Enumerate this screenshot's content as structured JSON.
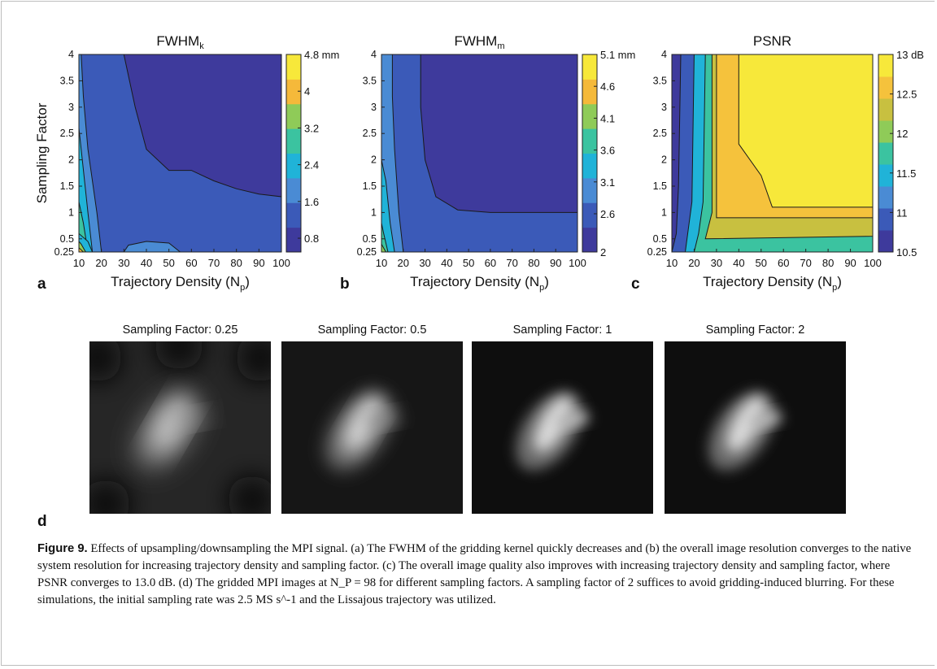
{
  "figure": {
    "panel_letters": [
      "a",
      "b",
      "c",
      "d"
    ],
    "caption": {
      "label": "Figure 9.",
      "text": "Effects of upsampling/downsampling the MPI signal. (a) The FWHM of the gridding kernel quickly decreases and (b) the overall image resolution converges to the native system resolution for increasing trajectory density and sampling factor. (c) The overall image quality also improves with increasing trajectory density and sampling factor, where PSNR converges to 13.0 dB. (d) The gridded MPI images at N_P = 98 for different sampling factors. A sampling factor of 2 suffices to avoid gridding-induced blurring. For these simulations, the initial sampling rate was 2.5 MS s^-1 and the Lissajous trajectory was utilized."
    },
    "images": [
      {
        "title": "Sampling Factor: 0.25"
      },
      {
        "title": "Sampling Factor: 0.5"
      },
      {
        "title": "Sampling Factor: 1"
      },
      {
        "title": "Sampling Factor: 2"
      }
    ]
  },
  "chart_data": [
    {
      "type": "heatmap",
      "title": "FWHM",
      "title_sub": "k",
      "xlabel": "Trajectory Density (N",
      "xlabel_sub": "p",
      "xlabel_end": ")",
      "ylabel": "Sampling Factor",
      "x_ticks": [
        "10",
        "20",
        "30",
        "40",
        "50",
        "60",
        "70",
        "80",
        "90",
        "100"
      ],
      "y_ticks": [
        "0.25",
        "0.5",
        "1",
        "1.5",
        "2",
        "2.5",
        "3",
        "3.5",
        "4"
      ],
      "x_range": [
        10,
        100
      ],
      "y_range": [
        0.25,
        4
      ],
      "colorbar_ticks": [
        "4.8 mm",
        "4",
        "3.2",
        "2.4",
        "1.6",
        "0.8"
      ],
      "colorbar_range": [
        0.5,
        4.8
      ],
      "colors": [
        "#3e3a9c",
        "#3b5ab8",
        "#4a8bd4",
        "#20b3d8",
        "#3bc3a0",
        "#8fcb58",
        "#f5b93a",
        "#f7e83a"
      ]
    },
    {
      "type": "heatmap",
      "title": "FWHM",
      "title_sub": "m",
      "xlabel": "Trajectory Density (N",
      "xlabel_sub": "p",
      "xlabel_end": ")",
      "x_ticks": [
        "10",
        "20",
        "30",
        "40",
        "50",
        "60",
        "70",
        "80",
        "90",
        "100"
      ],
      "y_ticks": [
        "0.25",
        "0.5",
        "1",
        "1.5",
        "2",
        "2.5",
        "3",
        "3.5",
        "4"
      ],
      "x_range": [
        10,
        100
      ],
      "y_range": [
        0.25,
        4
      ],
      "colorbar_ticks": [
        "5.1 mm",
        "4.6",
        "4.1",
        "3.6",
        "3.1",
        "2.6",
        "2"
      ],
      "colorbar_range": [
        2,
        5.1
      ],
      "colors": [
        "#3e3a9c",
        "#3b5ab8",
        "#4a8bd4",
        "#20b3d8",
        "#3bc3a0",
        "#8fcb58",
        "#f5b93a",
        "#f7e83a"
      ]
    },
    {
      "type": "heatmap",
      "title": "PSNR",
      "xlabel": "Trajectory Density (N",
      "xlabel_sub": "p",
      "xlabel_end": ")",
      "x_ticks": [
        "10",
        "20",
        "30",
        "40",
        "50",
        "60",
        "70",
        "80",
        "90",
        "100"
      ],
      "y_ticks": [
        "0.25",
        "0.5",
        "1",
        "1.5",
        "2",
        "2.5",
        "3",
        "3.5",
        "4"
      ],
      "x_range": [
        10,
        100
      ],
      "y_range": [
        0.25,
        4
      ],
      "colorbar_ticks": [
        "13 dB",
        "12.5",
        "12",
        "11.5",
        "11",
        "10.5"
      ],
      "colorbar_range": [
        10.5,
        13
      ],
      "colors": [
        "#3e3a9c",
        "#3b5ab8",
        "#4a8bd4",
        "#20b3d8",
        "#3bc3a0",
        "#8fcb58",
        "#c8c040",
        "#f5c23c",
        "#f7e83a"
      ]
    }
  ]
}
